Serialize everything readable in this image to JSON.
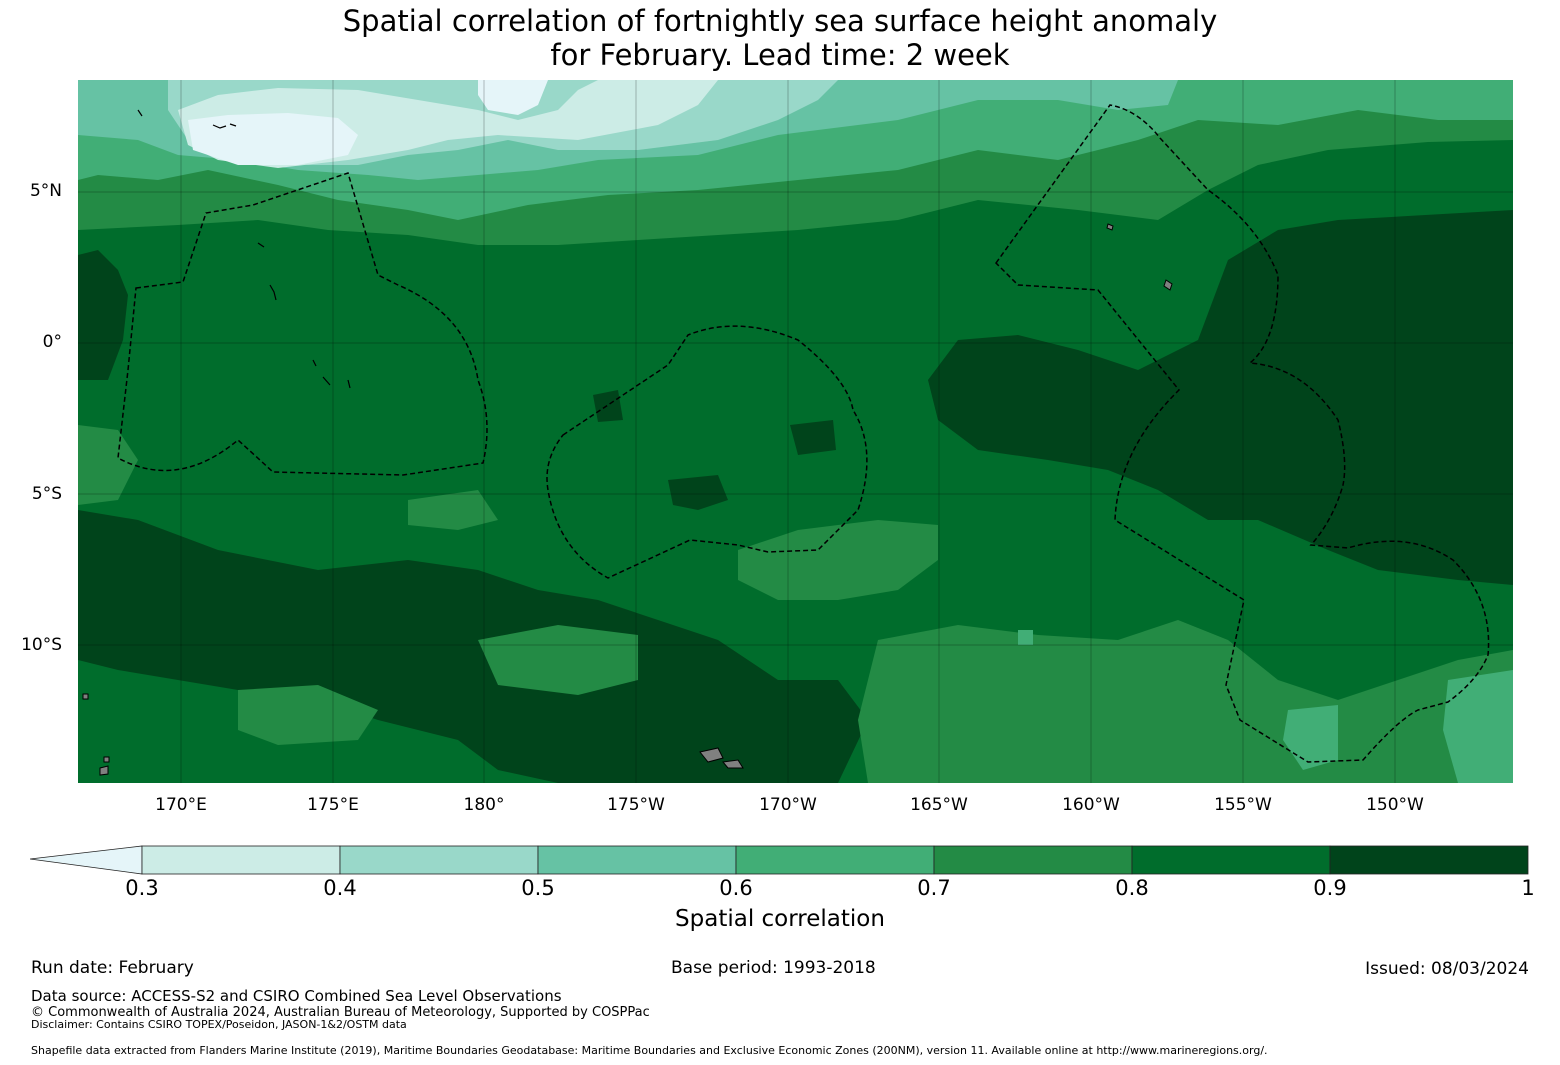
{
  "title": {
    "line1": "Spatial correlation of fortnightly sea surface height anomaly",
    "line2": "for February. Lead time: 2 week"
  },
  "map": {
    "lat_labels": [
      "5°N",
      "0°",
      "5°S",
      "10°S"
    ],
    "lon_labels": [
      "170°E",
      "175°E",
      "180°",
      "175°W",
      "170°W",
      "165°W",
      "160°W",
      "155°W",
      "150°W"
    ]
  },
  "colorbar": {
    "ticks": [
      "0.3",
      "0.4",
      "0.5",
      "0.6",
      "0.7",
      "0.8",
      "0.9",
      "1"
    ],
    "colors": [
      "#e5f5f9",
      "#ccece6",
      "#99d8c9",
      "#66c2a4",
      "#41ae76",
      "#238b45",
      "#006d2c",
      "#00441b"
    ],
    "label": "Spatial correlation"
  },
  "footer": {
    "run_date": "Run date: February",
    "base_period": "Base period: 1993-2018",
    "issued": "Issued: 08/03/2024",
    "data_source": "Data source: ACCESS-S2 and CSIRO Combined Sea Level Observations",
    "copyright": "© Commonwealth of Australia 2024, Australian Bureau of Meteorology, Supported by COSPPac",
    "disclaimer": "Disclaimer: Contains CSIRO TOPEX/Poseidon, JASON-1&2/OSTM data",
    "shapefile": "Shapefile data extracted from Flanders Marine Institute (2019), Maritime Boundaries Geodatabase: Maritime Boundaries and Exclusive Economic Zones (200NM), version 11. Available online at http://www.marineregions.org/."
  }
}
